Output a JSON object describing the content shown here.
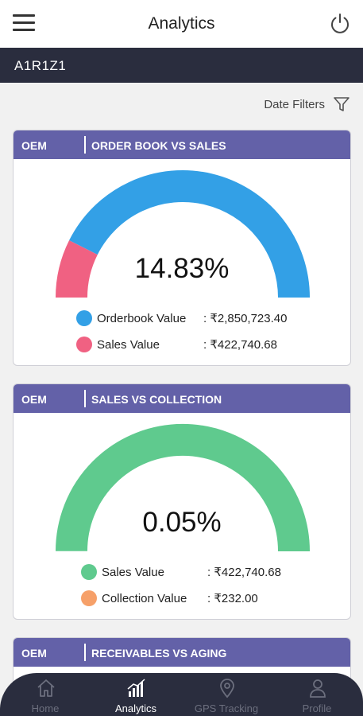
{
  "header": {
    "title": "Analytics",
    "menu_icon": "hamburger-menu-icon",
    "power_icon": "power-icon"
  },
  "subheader": {
    "code": "A1R1Z1"
  },
  "filters": {
    "date_label": "Date Filters",
    "icon": "filter-funnel-icon"
  },
  "cards": [
    {
      "tag": "OEM",
      "title": "ORDER BOOK VS SALES",
      "percent_text": "14.83%",
      "fill_fraction": 0.1483,
      "legend": [
        {
          "label": "Orderbook Value",
          "value": ": ₹2,850,723.40",
          "color": "#33a0e6"
        },
        {
          "label": "Sales Value",
          "value": ": ₹422,740.68",
          "color": "#f06182"
        }
      ]
    },
    {
      "tag": "OEM",
      "title": "SALES VS COLLECTION",
      "percent_text": "0.05%",
      "fill_fraction": 0.0005,
      "legend": [
        {
          "label": "Sales Value",
          "value": ": ₹422,740.68",
          "color": "#5fca8e"
        },
        {
          "label": "Collection Value",
          "value": ": ₹232.00",
          "color": "#f6a069"
        }
      ]
    },
    {
      "tag": "OEM",
      "title": "RECEIVABLES VS AGING"
    }
  ],
  "nav": [
    {
      "label": "Home",
      "icon": "home-icon",
      "active": false
    },
    {
      "label": "Analytics",
      "icon": "analytics-bars-icon",
      "active": true
    },
    {
      "label": "GPS Tracking",
      "icon": "location-pin-icon",
      "active": false
    },
    {
      "label": "Profile",
      "icon": "profile-person-icon",
      "active": false
    }
  ]
}
